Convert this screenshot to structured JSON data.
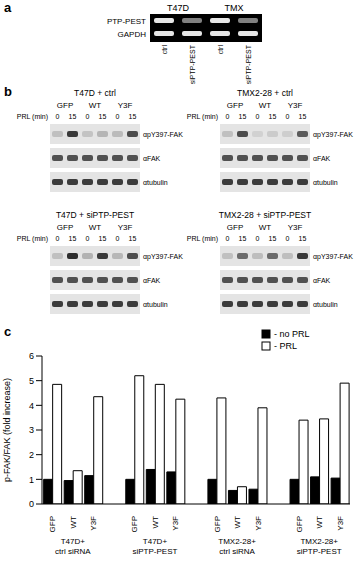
{
  "panel_a": {
    "letter": "a",
    "cell_lines": [
      "T47D",
      "TMX"
    ],
    "lanes": [
      "ctrl",
      "siPTP-PEST"
    ],
    "rows": [
      "PTP-PEST",
      "GAPDH"
    ]
  },
  "panel_b": {
    "letter": "b",
    "treatment_label": "PRL (min)",
    "time_points": [
      0,
      15
    ],
    "blots": [
      {
        "title": "T47D + ctrl"
      },
      {
        "title": "T47D + siPTP-PEST"
      },
      {
        "title": "TMX2-28 + ctrl"
      },
      {
        "title": "TMX2-28 + siPTP-PEST"
      }
    ],
    "rows": [
      "αpY397-FAK",
      "αFAK",
      "αtubulin"
    ]
  },
  "chart_data": {
    "panel_letter": "c",
    "type": "bar",
    "y_label": "p-FAK/FAK (fold increase)",
    "categories": [
      "GFP",
      "WT",
      "Y3F",
      "GFP",
      "WT",
      "Y3F",
      "GFP",
      "WT",
      "Y3F",
      "GFP",
      "WT",
      "Y3F"
    ],
    "group_labels": [
      [
        "T47D+",
        "ctrl siRNA"
      ],
      [
        "T47D+",
        "siPTP-PEST"
      ],
      [
        "TMX2-28+",
        "ctrl siRNA"
      ],
      [
        "TMX2-28+",
        "siPTP-PEST"
      ]
    ],
    "series": [
      {
        "name": "- no PRL",
        "color": "#000000",
        "values": [
          1,
          0.95,
          1.15,
          1,
          1.4,
          1.3,
          1,
          0.55,
          0.6,
          1,
          1.1,
          1.05
        ]
      },
      {
        "name": "- PRL",
        "color": "#ffffff",
        "values": [
          4.85,
          1.35,
          4.35,
          5.2,
          4.85,
          4.25,
          4.3,
          0.7,
          3.9,
          3.4,
          3.45,
          4.9
        ]
      }
    ],
    "ylim": [
      0,
      6
    ],
    "yticks": [
      0,
      1,
      2,
      3,
      4,
      5,
      6
    ],
    "grid": false,
    "legend": "top-right"
  }
}
